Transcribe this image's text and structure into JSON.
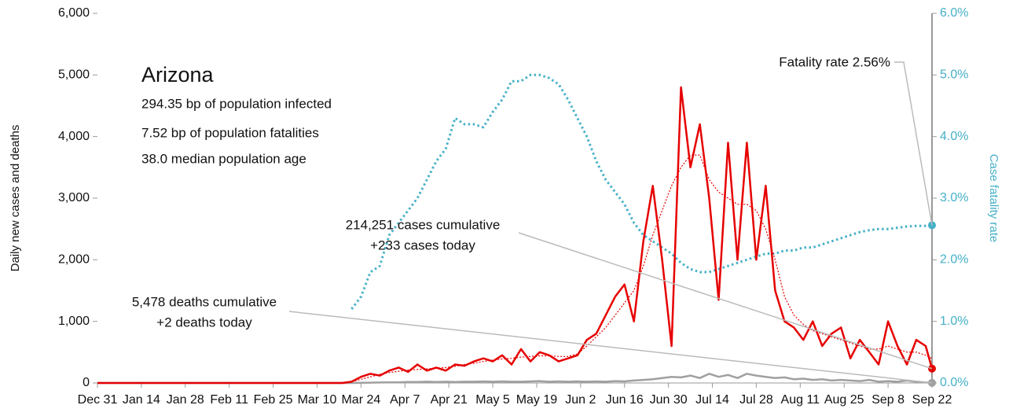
{
  "chart_data": {
    "type": "line",
    "y_label": "Daily new cases and deaths",
    "y2_label": "Case fatality rate",
    "x": [
      0,
      14,
      28,
      42,
      56,
      70,
      76,
      78,
      81,
      84,
      87,
      90,
      93,
      96,
      99,
      102,
      105,
      108,
      111,
      114,
      117,
      120,
      123,
      126,
      129,
      132,
      135,
      138,
      141,
      144,
      147,
      150,
      153,
      156,
      159,
      162,
      165,
      168,
      171,
      174,
      177,
      180,
      183,
      186,
      189,
      192,
      195,
      198,
      201,
      204,
      207,
      210,
      213,
      216,
      219,
      222,
      225,
      228,
      231,
      234,
      237,
      240,
      243,
      246,
      249,
      252,
      255,
      258,
      261,
      264,
      266
    ],
    "xlim": [
      0,
      266
    ],
    "xticks": [
      {
        "value": 0,
        "label": "Dec 31"
      },
      {
        "value": 14,
        "label": "Jan 14"
      },
      {
        "value": 28,
        "label": "Jan 28"
      },
      {
        "value": 42,
        "label": "Feb 11"
      },
      {
        "value": 56,
        "label": "Feb 25"
      },
      {
        "value": 70,
        "label": "Mar 10"
      },
      {
        "value": 84,
        "label": "Mar 24"
      },
      {
        "value": 98,
        "label": "Apr 7"
      },
      {
        "value": 112,
        "label": "Apr 21"
      },
      {
        "value": 126,
        "label": "May 5"
      },
      {
        "value": 140,
        "label": "May 19"
      },
      {
        "value": 154,
        "label": "Jun 2"
      },
      {
        "value": 168,
        "label": "Jun 16"
      },
      {
        "value": 182,
        "label": "Jun 30"
      },
      {
        "value": 196,
        "label": "Jul 14"
      },
      {
        "value": 210,
        "label": "Jul 28"
      },
      {
        "value": 224,
        "label": "Aug 11"
      },
      {
        "value": 238,
        "label": "Aug 25"
      },
      {
        "value": 252,
        "label": "Sep 8"
      },
      {
        "value": 266,
        "label": "Sep 22"
      }
    ],
    "ylim": [
      0,
      6000
    ],
    "yticks": [
      0,
      {
        "value": 1000,
        "label": "1,000"
      },
      {
        "value": 2000,
        "label": "2,000"
      },
      {
        "value": 3000,
        "label": "3,000"
      },
      {
        "value": 4000,
        "label": "4,000"
      },
      {
        "value": 5000,
        "label": "5,000"
      },
      {
        "value": 6000,
        "label": "6,000"
      }
    ],
    "y2lim": [
      0,
      6
    ],
    "y2ticks": [
      {
        "value": 0,
        "label": "0.0%"
      },
      {
        "value": 1,
        "label": "1.0%"
      },
      {
        "value": 2,
        "label": "2.0%"
      },
      {
        "value": 3,
        "label": "3.0%"
      },
      {
        "value": 4,
        "label": "4.0%"
      },
      {
        "value": 5,
        "label": "5.0%"
      },
      {
        "value": 6,
        "label": "6.0%"
      }
    ],
    "series": [
      {
        "color": "#45b0c8",
        "style": "dotted",
        "axis": "y2",
        "end_marker": true,
        "values": [
          null,
          null,
          null,
          null,
          null,
          null,
          null,
          null,
          1.2,
          1.4,
          1.8,
          1.9,
          2.4,
          2.6,
          2.8,
          3.0,
          3.3,
          3.6,
          3.8,
          4.3,
          4.2,
          4.2,
          4.15,
          4.4,
          4.6,
          4.9,
          4.9,
          5.0,
          5.0,
          4.95,
          4.85,
          4.6,
          4.3,
          4.0,
          3.6,
          3.3,
          3.1,
          2.9,
          2.6,
          2.4,
          2.3,
          2.2,
          2.1,
          1.95,
          1.85,
          1.8,
          1.8,
          1.85,
          1.9,
          1.95,
          2.0,
          2.05,
          2.1,
          2.1,
          2.15,
          2.15,
          2.2,
          2.2,
          2.25,
          2.3,
          2.35,
          2.4,
          2.45,
          2.48,
          2.5,
          2.5,
          2.52,
          2.54,
          2.55,
          2.55,
          2.56
        ]
      },
      {
        "color": "#a0a0a0",
        "style": "solid",
        "end_marker": true,
        "values": [
          0,
          0,
          0,
          0,
          0,
          0,
          0,
          0,
          0,
          2,
          5,
          8,
          10,
          10,
          15,
          15,
          20,
          15,
          20,
          15,
          20,
          20,
          25,
          20,
          25,
          20,
          20,
          25,
          30,
          20,
          25,
          20,
          25,
          20,
          25,
          20,
          30,
          25,
          40,
          50,
          60,
          80,
          100,
          90,
          120,
          80,
          150,
          100,
          130,
          80,
          150,
          120,
          100,
          80,
          90,
          60,
          70,
          50,
          60,
          40,
          50,
          40,
          30,
          50,
          20,
          30,
          20,
          40,
          20,
          10,
          2
        ]
      },
      {
        "color": "#e60000",
        "style": "dotted",
        "thin": true,
        "values": [
          0,
          0,
          0,
          0,
          0,
          0,
          0,
          0,
          20,
          60,
          100,
          140,
          170,
          190,
          210,
          220,
          230,
          240,
          250,
          270,
          300,
          320,
          350,
          370,
          390,
          400,
          420,
          430,
          440,
          440,
          430,
          430,
          470,
          600,
          750,
          900,
          1100,
          1300,
          1500,
          1900,
          2400,
          2800,
          3200,
          3500,
          3700,
          3700,
          3300,
          3100,
          3000,
          2900,
          2900,
          2800,
          2500,
          2000,
          1400,
          1100,
          950,
          850,
          800,
          750,
          700,
          650,
          600,
          550,
          550,
          600,
          550,
          500,
          500,
          450,
          400
        ]
      },
      {
        "color": "#e60000",
        "style": "solid",
        "end_marker": true,
        "values": [
          0,
          0,
          0,
          0,
          0,
          0,
          0,
          0,
          20,
          100,
          150,
          120,
          200,
          250,
          180,
          300,
          200,
          250,
          200,
          300,
          280,
          350,
          400,
          350,
          450,
          300,
          550,
          350,
          500,
          450,
          350,
          400,
          450,
          700,
          800,
          1100,
          1400,
          1600,
          1000,
          2300,
          3200,
          2000,
          600,
          4800,
          3500,
          4200,
          3000,
          1350,
          3900,
          2000,
          3900,
          2000,
          3200,
          1500,
          1000,
          900,
          700,
          1000,
          600,
          800,
          900,
          400,
          700,
          500,
          300,
          1000,
          600,
          300,
          700,
          600,
          233
        ]
      }
    ],
    "annotations": [
      {
        "text": "Arizona"
      },
      {
        "text": "294.35 bp of population infected"
      },
      {
        "text": "7.52 bp of population fatalities"
      },
      {
        "text": "38.0 median population age"
      },
      {
        "text": "Fatality rate 2.56%"
      },
      {
        "text": "214,251 cases cumulative"
      },
      {
        "text": "+233 cases today"
      },
      {
        "text": "5,478 deaths cumulative"
      },
      {
        "text": "+2 deaths today"
      }
    ]
  }
}
